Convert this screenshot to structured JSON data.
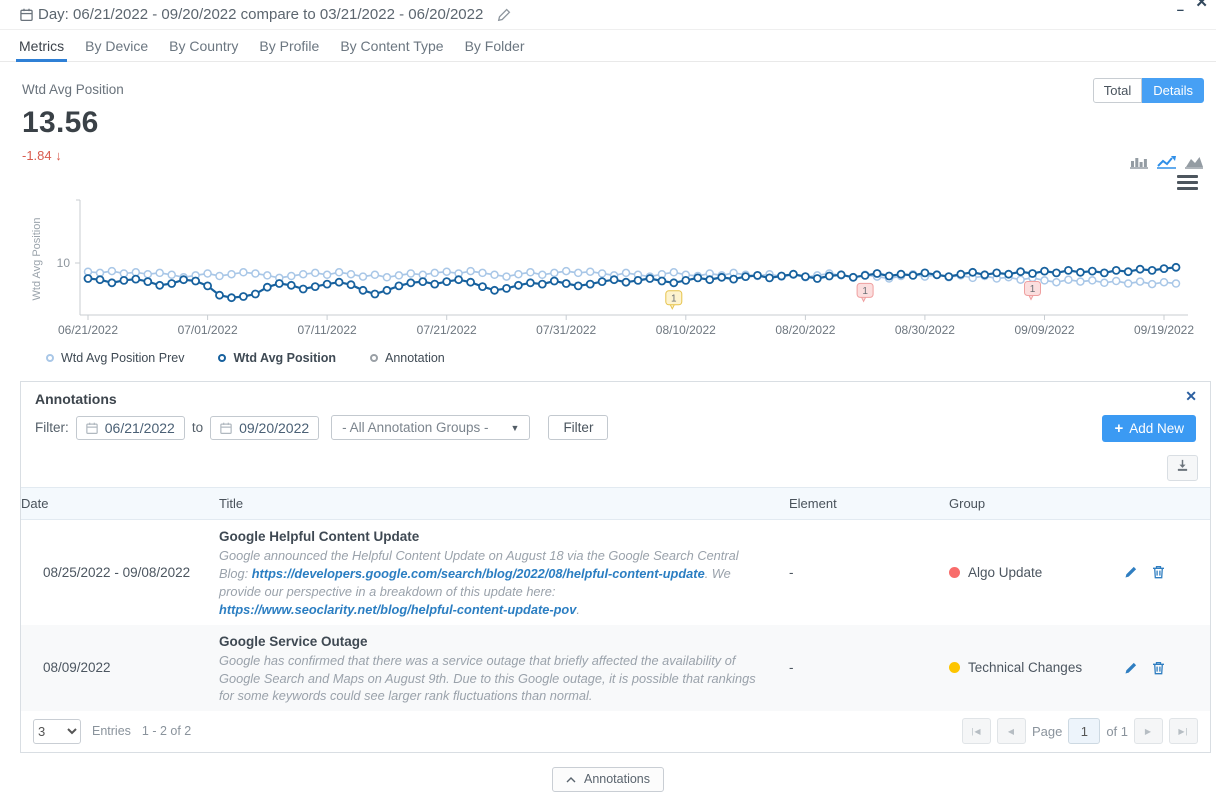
{
  "window": {
    "title": "Day: 06/21/2022 - 09/20/2022 compare to 03/21/2022 - 06/20/2022",
    "minimize_glyph": "–",
    "close_glyph": "✕"
  },
  "tabs": [
    {
      "label": "Metrics",
      "active": true
    },
    {
      "label": "By Device",
      "active": false
    },
    {
      "label": "By Country",
      "active": false
    },
    {
      "label": "By Profile",
      "active": false
    },
    {
      "label": "By Content Type",
      "active": false
    },
    {
      "label": "By Folder",
      "active": false
    }
  ],
  "metric": {
    "label": "Wtd Avg Position",
    "value": "13.56",
    "change": "-1.84",
    "arrow": "↓",
    "change_color": "#d95c4e"
  },
  "view_toggle": {
    "total": "Total",
    "details": "Details",
    "active": "Details",
    "active_color": "#47a0f4"
  },
  "chart_data": {
    "type": "line",
    "ylabel": "Wtd Avg Position",
    "y_tick": "10",
    "ylim_top_to_bottom": [
      0,
      18
    ],
    "axis_inverted": true,
    "start_date": "06/21/2022",
    "end_date": "09/20/2022",
    "x_ticks": [
      {
        "label": "06/21/2022",
        "day": 0
      },
      {
        "label": "07/01/2022",
        "day": 10
      },
      {
        "label": "07/11/2022",
        "day": 20
      },
      {
        "label": "07/21/2022",
        "day": 30
      },
      {
        "label": "07/31/2022",
        "day": 40
      },
      {
        "label": "08/10/2022",
        "day": 50
      },
      {
        "label": "08/20/2022",
        "day": 60
      },
      {
        "label": "08/30/2022",
        "day": 70
      },
      {
        "label": "09/09/2022",
        "day": 80
      },
      {
        "label": "09/19/2022",
        "day": 90
      }
    ],
    "series": [
      {
        "name": "Wtd Avg Position Prev",
        "color": "#a9c7e7",
        "values": [
          11.4,
          11.6,
          11.3,
          11.7,
          11.5,
          11.8,
          11.6,
          11.9,
          12.3,
          12.0,
          11.7,
          12.1,
          11.8,
          11.5,
          11.7,
          12.0,
          12.4,
          12.1,
          11.8,
          11.6,
          11.9,
          11.5,
          11.8,
          12.2,
          11.9,
          12.3,
          12.0,
          11.7,
          11.9,
          11.6,
          11.4,
          11.7,
          11.3,
          11.6,
          11.9,
          12.2,
          11.8,
          11.5,
          11.9,
          11.6,
          11.3,
          11.6,
          11.4,
          11.7,
          12.0,
          11.6,
          11.9,
          12.2,
          11.8,
          11.5,
          11.9,
          12.1,
          11.7,
          12.0,
          11.6,
          11.9,
          12.1,
          11.8,
          12.2,
          11.9,
          12.3,
          12.0,
          11.7,
          12.0,
          12.3,
          11.9,
          12.2,
          12.5,
          12.1,
          11.8,
          12.2,
          11.9,
          12.3,
          12.0,
          12.4,
          12.1,
          12.5,
          12.3,
          12.7,
          12.4,
          12.8,
          13.1,
          12.7,
          13.0,
          12.8,
          13.2,
          12.9,
          13.3,
          13.0,
          13.4,
          13.1,
          13.3
        ]
      },
      {
        "name": "Wtd Avg Position",
        "color": "#17619e",
        "values": [
          12.5,
          12.7,
          13.2,
          12.8,
          12.6,
          13.0,
          13.6,
          13.3,
          12.7,
          12.9,
          13.7,
          15.2,
          15.6,
          15.4,
          15.0,
          13.9,
          13.3,
          13.6,
          14.2,
          13.8,
          13.4,
          13.1,
          13.5,
          14.4,
          15.0,
          14.4,
          13.7,
          13.2,
          13.0,
          13.4,
          13.0,
          12.7,
          13.1,
          13.8,
          14.4,
          14.1,
          13.6,
          13.2,
          13.4,
          12.9,
          13.3,
          13.7,
          13.4,
          13.0,
          12.7,
          13.1,
          12.8,
          12.5,
          12.9,
          13.2,
          12.8,
          12.4,
          12.7,
          12.3,
          12.6,
          12.2,
          12.0,
          12.4,
          12.1,
          11.8,
          12.2,
          12.5,
          12.1,
          11.9,
          12.3,
          12.0,
          11.7,
          12.1,
          11.8,
          12.0,
          11.6,
          11.9,
          12.2,
          11.8,
          11.5,
          11.9,
          11.6,
          11.8,
          11.4,
          11.7,
          11.3,
          11.6,
          11.2,
          11.5,
          11.3,
          11.6,
          11.2,
          11.4,
          11.0,
          11.2,
          10.9,
          10.7
        ]
      }
    ],
    "annotations": [
      {
        "day": 49,
        "date": "08/09/2022",
        "label": "1",
        "group": "Technical Changes",
        "bg": "#fdf3cf",
        "border": "#e6c34c"
      },
      {
        "day": 65,
        "date": "08/25/2022",
        "label": "1",
        "group": "Algo Update",
        "bg": "#fbdede",
        "border": "#efa0a0"
      },
      {
        "day": 79,
        "date": "09/08/2022",
        "label": "1",
        "group": "Algo Update",
        "bg": "#fbdede",
        "border": "#efa0a0"
      }
    ],
    "legend_position": "bottom-left",
    "grid": false
  },
  "legend": [
    {
      "label": "Wtd Avg Position Prev",
      "color": "#a9c7e7"
    },
    {
      "label": "Wtd Avg Position",
      "color": "#17619e"
    },
    {
      "label": "Annotation",
      "color": "#9aa0a6"
    }
  ],
  "panel": {
    "title": "Annotations",
    "filter": {
      "label": "Filter:",
      "from": "06/21/2022",
      "to_label": "to",
      "to": "09/20/2022",
      "groups_dropdown": "- All Annotation Groups -",
      "caret": "▼",
      "button": "Filter"
    },
    "add_new": {
      "plus": "+",
      "label": "Add New",
      "color": "#3b9af3"
    },
    "table": {
      "headers": [
        "Date",
        "Title",
        "Element",
        "Group"
      ],
      "rows": [
        {
          "date": "08/25/2022 - 09/08/2022",
          "title": "Google Helpful Content Update",
          "desc": [
            {
              "t": "Google announced the Helpful Content Update on August 18 via the Google Search Central Blog: "
            },
            {
              "t": "https://developers.google.com/search/blog/2022/08/helpful-content-update",
              "link": true
            },
            {
              "t": ". We provide our perspective in a breakdown of this update here: "
            },
            {
              "t": "https://www.seoclarity.net/blog/helpful-content-update-pov",
              "link": true
            },
            {
              "t": "."
            }
          ],
          "element": "-",
          "group": {
            "label": "Algo Update",
            "color": "#f86c6b"
          }
        },
        {
          "date": "08/09/2022",
          "title": "Google Service Outage",
          "desc": [
            {
              "t": "Google has confirmed that there was a service outage that briefly affected the availability of Google Search and Maps on August 9th. Due to this Google outage, it is possible that rankings for some keywords could see larger rank fluctuations than normal."
            }
          ],
          "element": "-",
          "group": {
            "label": "Technical Changes",
            "color": "#fdc500"
          }
        }
      ]
    },
    "footer": {
      "page_size": "3",
      "entries_label": "Entries",
      "entries_range": "1 - 2 of 2",
      "pager": {
        "first": "|◀",
        "prev": "◀",
        "page_label": "Page",
        "page_value": "1",
        "of_label": "of 1",
        "next": "▶",
        "last": "▶|"
      }
    }
  },
  "collapse_button": {
    "label": "Annotations"
  }
}
